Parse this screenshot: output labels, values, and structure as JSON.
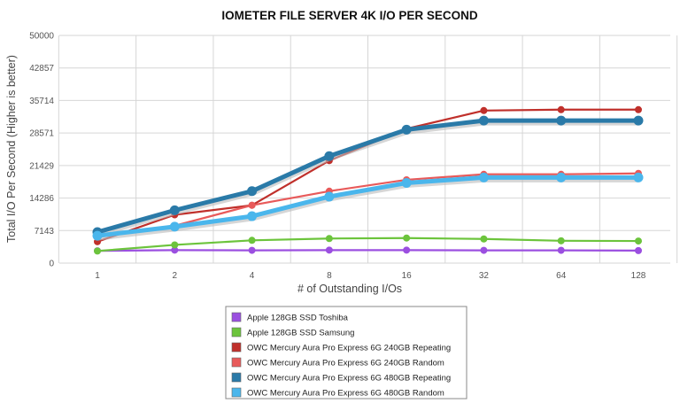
{
  "chart_data": {
    "type": "line",
    "title": "IOMETER FILE SERVER 4K I/O PER SECOND",
    "xlabel": "# of Outstanding I/Os",
    "ylabel": "Total I/O Per Second (Higher is better)",
    "categories": [
      "1",
      "2",
      "4",
      "8",
      "16",
      "32",
      "64",
      "128"
    ],
    "yticks": [
      "0",
      "7143",
      "14286",
      "21429",
      "28571",
      "35714",
      "42857",
      "50000"
    ],
    "ylim": [
      0,
      50000
    ],
    "grid": true,
    "legend_position": "bottom-center",
    "series": [
      {
        "name": "Apple 128GB SSD Toshiba",
        "color": "#9b4fe0",
        "values": [
          2700,
          2850,
          2800,
          2850,
          2850,
          2800,
          2800,
          2750
        ]
      },
      {
        "name": "Apple 128GB SSD Samsung",
        "color": "#6cc43c",
        "values": [
          2650,
          4000,
          5000,
          5400,
          5500,
          5300,
          4900,
          4850
        ]
      },
      {
        "name": "OWC Mercury Aura Pro Express 6G 240GB Repeating",
        "color": "#c0302b",
        "values": [
          4700,
          10600,
          12700,
          22500,
          29500,
          33500,
          33700,
          33700
        ]
      },
      {
        "name": "OWC Mercury Aura Pro Express 6G 240GB Random",
        "color": "#e85a5a",
        "values": [
          5700,
          8200,
          12700,
          15800,
          18300,
          19500,
          19500,
          19700
        ]
      },
      {
        "name": "OWC Mercury Aura Pro Express 6G 480GB Repeating",
        "color": "#2a7aa8",
        "values": [
          6800,
          11600,
          15800,
          23500,
          29300,
          31300,
          31300,
          31300
        ]
      },
      {
        "name": "OWC Mercury Aura Pro Express 6G 480GB Random",
        "color": "#4ab6ec",
        "values": [
          6000,
          8000,
          10300,
          14600,
          17600,
          18800,
          18800,
          18800
        ]
      }
    ]
  }
}
